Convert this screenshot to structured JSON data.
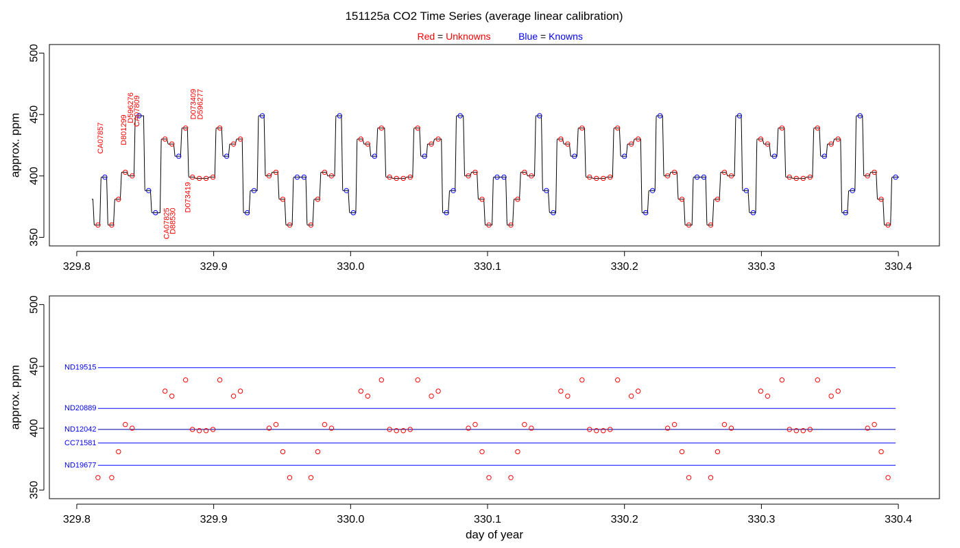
{
  "title": "151125a   CO2 Time Series (average linear calibration)",
  "subtitle": {
    "red_word": "Red",
    "red_eq": " = ",
    "red_text": "Unknowns",
    "blue_word": "Blue",
    "blue_eq": " = ",
    "blue_text": "Knowns"
  },
  "colors": {
    "unknown": "#ff0000",
    "known": "#0000ff",
    "trace": "#000000"
  },
  "chart_data": [
    {
      "type": "line",
      "panel": "top",
      "ylabel": "approx. ppm",
      "xlim": [
        329.78,
        330.43
      ],
      "ylim": [
        343,
        507
      ],
      "xticks": [
        329.8,
        329.9,
        330.0,
        330.1,
        330.2,
        330.3,
        330.4
      ],
      "xtick_labels": [
        "329.8",
        "329.9",
        "330.0",
        "330.1",
        "330.2",
        "330.3",
        "330.4"
      ],
      "yticks": [
        350,
        400,
        450,
        500
      ],
      "ytick_labels": [
        "350",
        "400",
        "450",
        "500"
      ],
      "trace_start": 381,
      "step_duration": 0.005,
      "steps": [
        {
          "x": 329.8155,
          "y": 360,
          "kind": "unknown"
        },
        {
          "x": 329.8205,
          "y": 399,
          "kind": "known"
        },
        {
          "x": 329.8255,
          "y": 360,
          "kind": "unknown"
        },
        {
          "x": 329.8305,
          "y": 381,
          "kind": "unknown"
        },
        {
          "x": 329.8355,
          "y": 403,
          "kind": "unknown"
        },
        {
          "x": 329.8405,
          "y": 400,
          "kind": "unknown"
        },
        {
          "x": 329.8455,
          "y": 449,
          "kind": "known"
        },
        {
          "x": 329.8525,
          "y": 388,
          "kind": "known"
        },
        {
          "x": 329.8575,
          "y": 370,
          "kind": "known"
        },
        {
          "x": 329.8645,
          "y": 430,
          "kind": "unknown"
        },
        {
          "x": 329.8695,
          "y": 426,
          "kind": "unknown"
        },
        {
          "x": 329.8745,
          "y": 416,
          "kind": "known"
        },
        {
          "x": 329.8795,
          "y": 439,
          "kind": "unknown"
        },
        {
          "x": 329.8845,
          "y": 399,
          "kind": "unknown"
        },
        {
          "x": 329.8895,
          "y": 398,
          "kind": "unknown"
        },
        {
          "x": 329.8945,
          "y": 398,
          "kind": "unknown"
        },
        {
          "x": 329.8995,
          "y": 399,
          "kind": "unknown"
        },
        {
          "x": 329.9045,
          "y": 439,
          "kind": "unknown"
        },
        {
          "x": 329.9095,
          "y": 416,
          "kind": "known"
        },
        {
          "x": 329.9145,
          "y": 426,
          "kind": "unknown"
        },
        {
          "x": 329.9195,
          "y": 430,
          "kind": "unknown"
        },
        {
          "x": 329.9245,
          "y": 370,
          "kind": "known"
        },
        {
          "x": 329.9295,
          "y": 388,
          "kind": "known"
        },
        {
          "x": 329.9355,
          "y": 449,
          "kind": "known"
        },
        {
          "x": 329.9405,
          "y": 400,
          "kind": "unknown"
        },
        {
          "x": 329.9455,
          "y": 403,
          "kind": "unknown"
        },
        {
          "x": 329.9505,
          "y": 381,
          "kind": "unknown"
        },
        {
          "x": 329.9555,
          "y": 360,
          "kind": "unknown"
        },
        {
          "x": 329.961,
          "y": 399,
          "kind": "known"
        },
        {
          "x": 329.966,
          "y": 399,
          "kind": "known"
        },
        {
          "x": 329.971,
          "y": 360,
          "kind": "unknown"
        },
        {
          "x": 329.976,
          "y": 381,
          "kind": "unknown"
        },
        {
          "x": 329.981,
          "y": 403,
          "kind": "unknown"
        },
        {
          "x": 329.986,
          "y": 400,
          "kind": "unknown"
        },
        {
          "x": 329.992,
          "y": 449,
          "kind": "known"
        },
        {
          "x": 329.997,
          "y": 388,
          "kind": "known"
        },
        {
          "x": 330.002,
          "y": 370,
          "kind": "known"
        },
        {
          "x": 330.0075,
          "y": 430,
          "kind": "unknown"
        },
        {
          "x": 330.0125,
          "y": 426,
          "kind": "unknown"
        },
        {
          "x": 330.0175,
          "y": 416,
          "kind": "known"
        },
        {
          "x": 330.0225,
          "y": 439,
          "kind": "unknown"
        },
        {
          "x": 330.0285,
          "y": 399,
          "kind": "unknown"
        },
        {
          "x": 330.0335,
          "y": 398,
          "kind": "unknown"
        },
        {
          "x": 330.0385,
          "y": 398,
          "kind": "unknown"
        },
        {
          "x": 330.0435,
          "y": 399,
          "kind": "unknown"
        },
        {
          "x": 330.049,
          "y": 439,
          "kind": "unknown"
        },
        {
          "x": 330.054,
          "y": 416,
          "kind": "known"
        },
        {
          "x": 330.059,
          "y": 426,
          "kind": "unknown"
        },
        {
          "x": 330.064,
          "y": 430,
          "kind": "unknown"
        },
        {
          "x": 330.07,
          "y": 370,
          "kind": "known"
        },
        {
          "x": 330.075,
          "y": 388,
          "kind": "known"
        },
        {
          "x": 330.08,
          "y": 449,
          "kind": "known"
        },
        {
          "x": 330.086,
          "y": 400,
          "kind": "unknown"
        },
        {
          "x": 330.091,
          "y": 403,
          "kind": "unknown"
        },
        {
          "x": 330.096,
          "y": 381,
          "kind": "unknown"
        },
        {
          "x": 330.101,
          "y": 360,
          "kind": "unknown"
        },
        {
          "x": 330.107,
          "y": 399,
          "kind": "known"
        },
        {
          "x": 330.112,
          "y": 399,
          "kind": "known"
        },
        {
          "x": 330.117,
          "y": 360,
          "kind": "unknown"
        },
        {
          "x": 330.122,
          "y": 381,
          "kind": "unknown"
        },
        {
          "x": 330.127,
          "y": 403,
          "kind": "unknown"
        },
        {
          "x": 330.132,
          "y": 400,
          "kind": "unknown"
        },
        {
          "x": 330.138,
          "y": 449,
          "kind": "known"
        },
        {
          "x": 330.143,
          "y": 388,
          "kind": "known"
        },
        {
          "x": 330.148,
          "y": 370,
          "kind": "known"
        },
        {
          "x": 330.1535,
          "y": 430,
          "kind": "unknown"
        },
        {
          "x": 330.1585,
          "y": 426,
          "kind": "unknown"
        },
        {
          "x": 330.1635,
          "y": 416,
          "kind": "known"
        },
        {
          "x": 330.169,
          "y": 439,
          "kind": "unknown"
        },
        {
          "x": 330.1745,
          "y": 399,
          "kind": "unknown"
        },
        {
          "x": 330.1795,
          "y": 398,
          "kind": "unknown"
        },
        {
          "x": 330.1845,
          "y": 398,
          "kind": "unknown"
        },
        {
          "x": 330.1895,
          "y": 399,
          "kind": "unknown"
        },
        {
          "x": 330.195,
          "y": 439,
          "kind": "unknown"
        },
        {
          "x": 330.2,
          "y": 416,
          "kind": "known"
        },
        {
          "x": 330.205,
          "y": 426,
          "kind": "unknown"
        },
        {
          "x": 330.21,
          "y": 430,
          "kind": "unknown"
        },
        {
          "x": 330.2155,
          "y": 370,
          "kind": "known"
        },
        {
          "x": 330.2205,
          "y": 388,
          "kind": "known"
        },
        {
          "x": 330.226,
          "y": 449,
          "kind": "known"
        },
        {
          "x": 330.2315,
          "y": 400,
          "kind": "unknown"
        },
        {
          "x": 330.2365,
          "y": 403,
          "kind": "unknown"
        },
        {
          "x": 330.242,
          "y": 381,
          "kind": "unknown"
        },
        {
          "x": 330.247,
          "y": 360,
          "kind": "unknown"
        },
        {
          "x": 330.253,
          "y": 399,
          "kind": "known"
        },
        {
          "x": 330.258,
          "y": 399,
          "kind": "known"
        },
        {
          "x": 330.263,
          "y": 360,
          "kind": "unknown"
        },
        {
          "x": 330.268,
          "y": 381,
          "kind": "unknown"
        },
        {
          "x": 330.273,
          "y": 403,
          "kind": "unknown"
        },
        {
          "x": 330.278,
          "y": 400,
          "kind": "unknown"
        },
        {
          "x": 330.284,
          "y": 449,
          "kind": "known"
        },
        {
          "x": 330.289,
          "y": 388,
          "kind": "known"
        },
        {
          "x": 330.294,
          "y": 370,
          "kind": "known"
        },
        {
          "x": 330.2995,
          "y": 430,
          "kind": "unknown"
        },
        {
          "x": 330.3045,
          "y": 426,
          "kind": "unknown"
        },
        {
          "x": 330.3095,
          "y": 416,
          "kind": "known"
        },
        {
          "x": 330.315,
          "y": 439,
          "kind": "unknown"
        },
        {
          "x": 330.3205,
          "y": 399,
          "kind": "unknown"
        },
        {
          "x": 330.3255,
          "y": 398,
          "kind": "unknown"
        },
        {
          "x": 330.3305,
          "y": 398,
          "kind": "unknown"
        },
        {
          "x": 330.3355,
          "y": 399,
          "kind": "unknown"
        },
        {
          "x": 330.341,
          "y": 439,
          "kind": "unknown"
        },
        {
          "x": 330.346,
          "y": 416,
          "kind": "known"
        },
        {
          "x": 330.351,
          "y": 426,
          "kind": "unknown"
        },
        {
          "x": 330.356,
          "y": 430,
          "kind": "unknown"
        },
        {
          "x": 330.3615,
          "y": 370,
          "kind": "known"
        },
        {
          "x": 330.3665,
          "y": 388,
          "kind": "known"
        },
        {
          "x": 330.372,
          "y": 449,
          "kind": "known"
        },
        {
          "x": 330.3775,
          "y": 400,
          "kind": "unknown"
        },
        {
          "x": 330.3825,
          "y": 403,
          "kind": "unknown"
        },
        {
          "x": 330.3875,
          "y": 381,
          "kind": "unknown"
        },
        {
          "x": 330.3925,
          "y": 360,
          "kind": "unknown"
        },
        {
          "x": 330.398,
          "y": 399,
          "kind": "known"
        }
      ],
      "annotations": [
        {
          "text": "CA07857",
          "x": 329.8175,
          "y": 418,
          "anchor": "start"
        },
        {
          "text": "D801299",
          "x": 329.8345,
          "y": 425,
          "anchor": "start"
        },
        {
          "text": "D596276",
          "x": 329.8395,
          "y": 443,
          "anchor": "start"
        },
        {
          "text": "CA07809",
          "x": 329.844,
          "y": 440,
          "anchor": "start"
        },
        {
          "text": "CA07825",
          "x": 329.866,
          "y": 374,
          "anchor": "end"
        },
        {
          "text": "D88530",
          "x": 329.8705,
          "y": 374,
          "anchor": "end"
        },
        {
          "text": "D073419",
          "x": 329.8815,
          "y": 395,
          "anchor": "end"
        },
        {
          "text": "D073409",
          "x": 329.8855,
          "y": 446,
          "anchor": "start"
        },
        {
          "text": "D596277",
          "x": 329.8905,
          "y": 446,
          "anchor": "start"
        }
      ]
    },
    {
      "type": "scatter",
      "panel": "bottom",
      "xlabel": "day of year",
      "ylabel": "approx. ppm",
      "xlim": [
        329.78,
        330.43
      ],
      "ylim": [
        343,
        507
      ],
      "xticks": [
        329.8,
        329.9,
        330.0,
        330.1,
        330.2,
        330.3,
        330.4
      ],
      "xtick_labels": [
        "329.8",
        "329.9",
        "330.0",
        "330.1",
        "330.2",
        "330.3",
        "330.4"
      ],
      "yticks": [
        350,
        400,
        450,
        500
      ],
      "ytick_labels": [
        "350",
        "400",
        "450",
        "500"
      ],
      "known_lines": [
        {
          "name": "ND19515",
          "y": 449
        },
        {
          "name": "ND20889",
          "y": 416
        },
        {
          "name": "ND12042",
          "y": 399
        },
        {
          "name": "CC71581",
          "y": 388
        },
        {
          "name": "ND19677",
          "y": 370
        }
      ],
      "known_line_x": [
        329.8155,
        329.998
      ],
      "known_line_x_end": 330.398,
      "unknown_points": "steps where kind = unknown"
    }
  ]
}
